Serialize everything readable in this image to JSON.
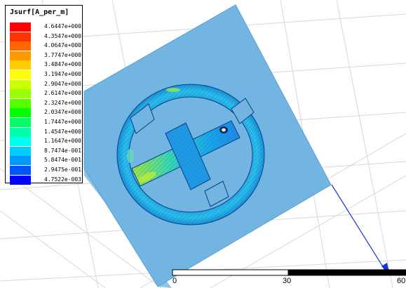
{
  "legend": {
    "title": "Jsurf[A_per_m]",
    "entries": [
      {
        "value": "4.6447e+000",
        "color": "#ff0000"
      },
      {
        "value": "4.3547e+000",
        "color": "#ff3300"
      },
      {
        "value": "4.0647e+000",
        "color": "#ff6600"
      },
      {
        "value": "3.7747e+000",
        "color": "#ff9900"
      },
      {
        "value": "3.4847e+000",
        "color": "#ffcc00"
      },
      {
        "value": "3.1947e+000",
        "color": "#ffff00"
      },
      {
        "value": "2.9047e+000",
        "color": "#ccff00"
      },
      {
        "value": "2.6147e+000",
        "color": "#99ff00"
      },
      {
        "value": "2.3247e+000",
        "color": "#55ff00"
      },
      {
        "value": "2.0347e+000",
        "color": "#00ff00"
      },
      {
        "value": "1.7447e+000",
        "color": "#00ff66"
      },
      {
        "value": "1.4547e+000",
        "color": "#00ffaa"
      },
      {
        "value": "1.1647e+000",
        "color": "#00ffee"
      },
      {
        "value": "8.7474e-001",
        "color": "#00ccff"
      },
      {
        "value": "5.8474e-001",
        "color": "#0099ff"
      },
      {
        "value": "2.9475e-001",
        "color": "#0055ff"
      },
      {
        "value": "4.7522e-003",
        "color": "#0000ff"
      }
    ]
  },
  "scale_bar": {
    "ticks": [
      "0",
      "30",
      "60"
    ]
  },
  "colors": {
    "substrate": "#72b4e2",
    "substrate_side": "#8ec4e8",
    "grid": "#d8d8d8",
    "axis_arrow": "#1a33d9",
    "axis_label": "#8a8f2a"
  }
}
